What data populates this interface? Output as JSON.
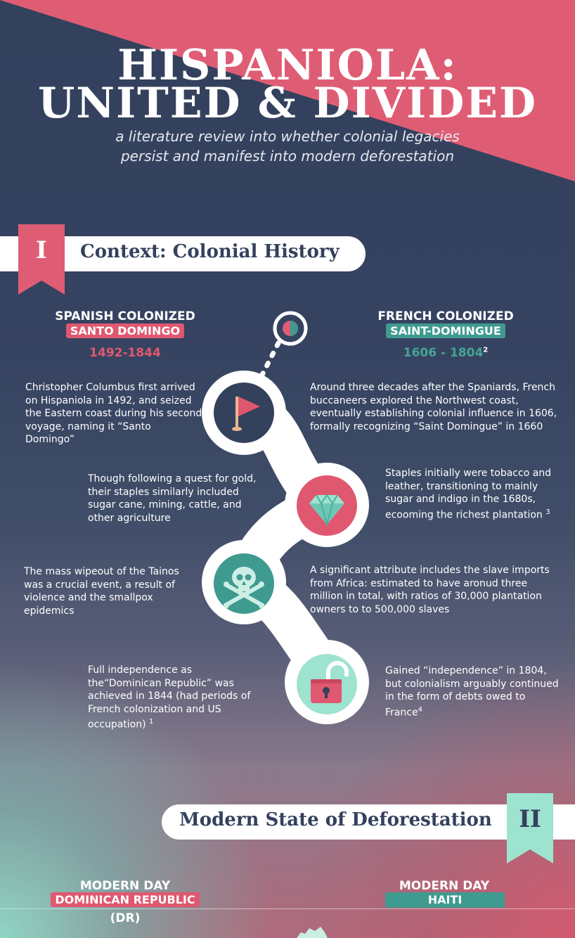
{
  "header": {
    "title_line1": "HISPANIOLA:",
    "title_line2": "UNITED & DIVIDED",
    "subtitle_line1": "a literature review into whether colonial legacies",
    "subtitle_line2": "persist and manifest into modern deforestation"
  },
  "section1": {
    "numeral": "I",
    "title": "Context: Colonial History",
    "left_head": "SPANISH COLONIZED",
    "left_tag": "SANTO DOMINGO",
    "left_years": "1492-1844",
    "right_head": "FRENCH COLONIZED",
    "right_tag": "SAINT-DOMINGUE",
    "right_years": "1606 - 1804",
    "right_years_ref": "2",
    "left_texts": [
      "Christopher Columbus first arrived on Hispaniola in 1492, and seized the Eastern coast during his second voyage, naming it “Santo Domingo”",
      "Though following a quest for gold, their staples similarly included sugar cane, mining, cattle, and other agriculture",
      "The mass wipeout of the Tainos was a crucial event, a result of violence and the smallpox epidemics",
      "Full independence as the“Dominican Republic” was achieved in 1844 (had periods of French colonization and US occupation)"
    ],
    "left_ref4": "1",
    "right_texts": [
      "Around three decades after the Spaniards, French buccaneers explored the Northwest coast, eventually establishing colonial influence in 1606, formally recognizing “Saint Domingue” in 1660",
      "Staples initially were tobacco and leather, transitioning to mainly sugar and indigo in the 1680s, ecooming the richest plantation",
      "A significant attribute includes the slave imports from Africa: estimated to have aronud three million in total, with ratios of 30,000 plantation owners to to 500,000 slaves",
      "Gained “independence” in 1804, but colonialism arguably continued in the form of debts owed to France"
    ],
    "right_ref2": "3",
    "right_ref4": "4",
    "icons": [
      "flag-icon",
      "gem-icon",
      "skull-crossbones-icon",
      "padlock-icon"
    ]
  },
  "section2": {
    "numeral": "II",
    "title": "Modern State of Deforestation",
    "left_head": "MODERN DAY",
    "left_tag": "DOMINICAN REPUBLIC",
    "left_sub": "(DR)",
    "right_head": "MODERN DAY",
    "right_tag": "HAITI"
  },
  "colors": {
    "navy": "#34415d",
    "pink": "#e05870",
    "teal": "#3f9a8f",
    "mint": "#9de3cf"
  }
}
